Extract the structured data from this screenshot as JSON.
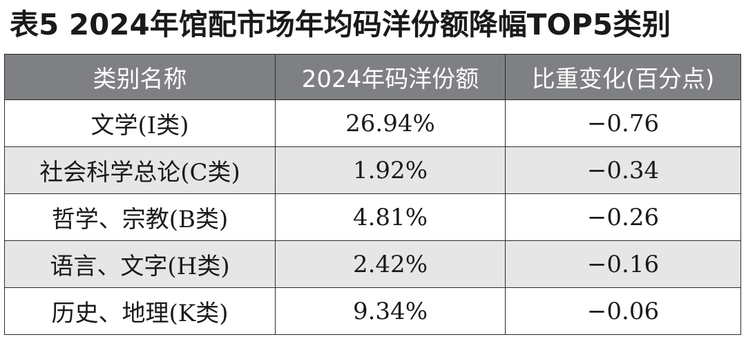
{
  "title": "表5  2024年馆配市场年均码洋份额降幅TOP5类别",
  "chart_data": {
    "type": "table",
    "title": "表5  2024年馆配市场年均码洋份额降幅TOP5类别",
    "columns": [
      "类别名称",
      "2024年码洋份额",
      "比重变化(百分点)"
    ],
    "rows": [
      {
        "category": "文学(I类)",
        "share": "26.94%",
        "change": "−0.76"
      },
      {
        "category": "社会科学总论(C类)",
        "share": "1.92%",
        "change": "−0.34"
      },
      {
        "category": "哲学、宗教(B类)",
        "share": "4.81%",
        "change": "−0.26"
      },
      {
        "category": "语言、文字(H类)",
        "share": "2.42%",
        "change": "−0.16"
      },
      {
        "category": "历史、地理(K类)",
        "share": "9.34%",
        "change": "−0.06"
      }
    ]
  },
  "colors": {
    "header_bg": "#7f8084",
    "header_text": "#ffffff",
    "row_shade": "#e6e6e6",
    "row_plain": "#ffffff",
    "border": "#2a2a2a"
  }
}
